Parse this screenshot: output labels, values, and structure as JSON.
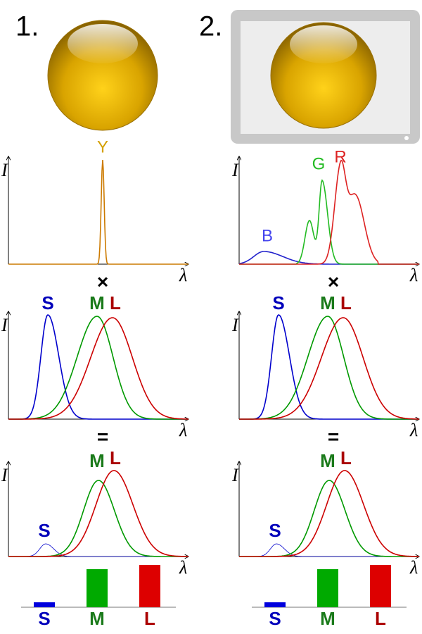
{
  "panels": [
    {
      "number": "1.",
      "intensity": "I",
      "wavelength": "λ",
      "spectrum_labels": [
        "Y"
      ],
      "multiply": "×",
      "equals": "=",
      "cone_labels": [
        "S",
        "M",
        "L"
      ],
      "product_labels": [
        "S",
        "M",
        "L"
      ],
      "responses": {
        "labels": [
          "S",
          "M",
          "L"
        ],
        "values": [
          7,
          54,
          60
        ]
      }
    },
    {
      "number": "2.",
      "intensity": "I",
      "wavelength": "λ",
      "spectrum_labels": [
        "B",
        "G",
        "R"
      ],
      "multiply": "×",
      "equals": "=",
      "cone_labels": [
        "S",
        "M",
        "L"
      ],
      "product_labels": [
        "S",
        "M",
        "L"
      ],
      "responses": {
        "labels": [
          "S",
          "M",
          "L"
        ],
        "values": [
          7,
          54,
          60
        ]
      }
    }
  ]
}
